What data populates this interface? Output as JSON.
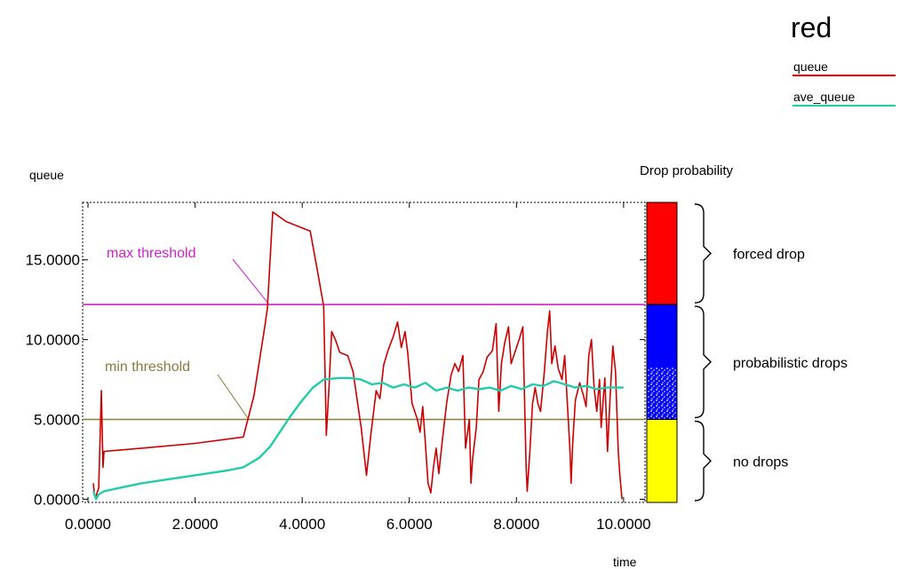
{
  "chart_data": {
    "type": "line",
    "title": "red",
    "xlabel": "time",
    "ylabel": "queue",
    "xlim": [
      -0.1,
      10.4
    ],
    "ylim": [
      -0.2,
      18.6
    ],
    "x_ticks": [
      0,
      2,
      4,
      6,
      8,
      10
    ],
    "x_tick_labels": [
      "0.0000",
      "2.0000",
      "4.0000",
      "6.0000",
      "8.0000",
      "10.0000"
    ],
    "y_ticks": [
      0,
      5,
      10,
      15
    ],
    "y_tick_labels": [
      "0.0000",
      "5.0000",
      "10.0000",
      "15.0000"
    ],
    "grid": false,
    "legend_position": "top-right",
    "thresholds": [
      {
        "label": "max threshold",
        "value": 12.2,
        "color": "#cc22cc"
      },
      {
        "label": "min threshold",
        "value": 5.0,
        "color": "#8a7a3c"
      }
    ],
    "series": [
      {
        "name": "queue",
        "color": "#cc0000",
        "points": [
          [
            0.1,
            1.0
          ],
          [
            0.12,
            0.3
          ],
          [
            0.15,
            0.2
          ],
          [
            0.2,
            0.7
          ],
          [
            0.25,
            6.8
          ],
          [
            0.28,
            2.0
          ],
          [
            0.3,
            3.0
          ],
          [
            1.0,
            3.2
          ],
          [
            2.0,
            3.5
          ],
          [
            2.9,
            3.9
          ],
          [
            3.1,
            6.5
          ],
          [
            3.3,
            10.8
          ],
          [
            3.35,
            12.0
          ],
          [
            3.45,
            18.0
          ],
          [
            3.7,
            17.4
          ],
          [
            4.15,
            16.8
          ],
          [
            4.3,
            14.0
          ],
          [
            4.4,
            12.1
          ],
          [
            4.45,
            4.0
          ],
          [
            4.5,
            7.0
          ],
          [
            4.55,
            10.5
          ],
          [
            4.62,
            10.0
          ],
          [
            4.7,
            9.2
          ],
          [
            4.85,
            9.0
          ],
          [
            4.95,
            8.0
          ],
          [
            5.1,
            4.5
          ],
          [
            5.2,
            1.5
          ],
          [
            5.28,
            4.0
          ],
          [
            5.38,
            6.8
          ],
          [
            5.45,
            6.3
          ],
          [
            5.52,
            8.4
          ],
          [
            5.6,
            9.3
          ],
          [
            5.7,
            10.2
          ],
          [
            5.78,
            11.1
          ],
          [
            5.85,
            9.5
          ],
          [
            5.92,
            10.5
          ],
          [
            5.97,
            9.2
          ],
          [
            6.05,
            6.0
          ],
          [
            6.15,
            5.0
          ],
          [
            6.2,
            4.2
          ],
          [
            6.25,
            5.8
          ],
          [
            6.3,
            3.5
          ],
          [
            6.35,
            1.0
          ],
          [
            6.4,
            0.4
          ],
          [
            6.45,
            2.0
          ],
          [
            6.5,
            3.2
          ],
          [
            6.55,
            1.6
          ],
          [
            6.62,
            3.8
          ],
          [
            6.7,
            6.1
          ],
          [
            6.78,
            7.8
          ],
          [
            6.85,
            8.5
          ],
          [
            6.92,
            8.0
          ],
          [
            7.0,
            9.0
          ],
          [
            7.05,
            3.2
          ],
          [
            7.12,
            5.0
          ],
          [
            7.15,
            1.0
          ],
          [
            7.18,
            2.5
          ],
          [
            7.25,
            4.5
          ],
          [
            7.3,
            7.5
          ],
          [
            7.38,
            8.0
          ],
          [
            7.45,
            8.9
          ],
          [
            7.55,
            9.3
          ],
          [
            7.62,
            11.0
          ],
          [
            7.67,
            5.5
          ],
          [
            7.72,
            8.5
          ],
          [
            7.78,
            9.8
          ],
          [
            7.85,
            10.8
          ],
          [
            7.9,
            8.5
          ],
          [
            7.95,
            9.0
          ],
          [
            8.05,
            10.0
          ],
          [
            8.12,
            10.8
          ],
          [
            8.18,
            2.0
          ],
          [
            8.2,
            0.5
          ],
          [
            8.25,
            3.0
          ],
          [
            8.3,
            6.0
          ],
          [
            8.35,
            7.0
          ],
          [
            8.4,
            6.0
          ],
          [
            8.45,
            5.5
          ],
          [
            8.52,
            8.0
          ],
          [
            8.58,
            10.6
          ],
          [
            8.62,
            11.8
          ],
          [
            8.66,
            8.5
          ],
          [
            8.72,
            9.6
          ],
          [
            8.78,
            8.2
          ],
          [
            8.85,
            7.5
          ],
          [
            8.9,
            9.0
          ],
          [
            8.95,
            6.0
          ],
          [
            9.0,
            3.0
          ],
          [
            9.02,
            1.0
          ],
          [
            9.05,
            3.5
          ],
          [
            9.1,
            6.2
          ],
          [
            9.18,
            7.3
          ],
          [
            9.25,
            6.5
          ],
          [
            9.3,
            5.8
          ],
          [
            9.35,
            9.0
          ],
          [
            9.4,
            10.0
          ],
          [
            9.45,
            7.0
          ],
          [
            9.5,
            5.5
          ],
          [
            9.55,
            7.5
          ],
          [
            9.58,
            4.5
          ],
          [
            9.65,
            7.6
          ],
          [
            9.7,
            3.0
          ],
          [
            9.75,
            6.5
          ],
          [
            9.8,
            9.6
          ],
          [
            9.85,
            8.0
          ],
          [
            9.9,
            3.0
          ],
          [
            9.93,
            1.5
          ],
          [
            9.97,
            0.0
          ]
        ]
      },
      {
        "name": "ave_queue",
        "color": "#22ccaa",
        "points": [
          [
            0.1,
            0.5
          ],
          [
            0.15,
            0.0
          ],
          [
            0.2,
            0.3
          ],
          [
            0.3,
            0.5
          ],
          [
            1.0,
            1.0
          ],
          [
            2.0,
            1.5
          ],
          [
            2.6,
            1.8
          ],
          [
            2.9,
            2.0
          ],
          [
            3.2,
            2.6
          ],
          [
            3.4,
            3.3
          ],
          [
            3.6,
            4.3
          ],
          [
            3.8,
            5.3
          ],
          [
            4.0,
            6.2
          ],
          [
            4.2,
            7.0
          ],
          [
            4.4,
            7.5
          ],
          [
            4.7,
            7.6
          ],
          [
            4.9,
            7.6
          ],
          [
            5.1,
            7.5
          ],
          [
            5.3,
            7.2
          ],
          [
            5.5,
            7.3
          ],
          [
            5.7,
            7.0
          ],
          [
            5.9,
            7.2
          ],
          [
            6.1,
            7.0
          ],
          [
            6.3,
            7.3
          ],
          [
            6.5,
            6.8
          ],
          [
            6.7,
            7.0
          ],
          [
            6.9,
            6.8
          ],
          [
            7.1,
            7.0
          ],
          [
            7.3,
            6.9
          ],
          [
            7.5,
            7.0
          ],
          [
            7.7,
            6.8
          ],
          [
            7.9,
            7.1
          ],
          [
            8.1,
            6.9
          ],
          [
            8.3,
            7.2
          ],
          [
            8.5,
            7.1
          ],
          [
            8.7,
            7.4
          ],
          [
            8.9,
            7.2
          ],
          [
            9.1,
            7.0
          ],
          [
            9.3,
            7.1
          ],
          [
            9.5,
            6.9
          ],
          [
            9.7,
            7.0
          ],
          [
            9.9,
            7.0
          ],
          [
            10.0,
            7.0
          ]
        ]
      }
    ],
    "drop_probability": {
      "title": "Drop probability",
      "bands": [
        {
          "label": "forced drop",
          "from": 12.2,
          "to": 18.6,
          "color": "#ff0000"
        },
        {
          "label": "probabilistic drops",
          "from": 5.0,
          "to": 12.2,
          "color": "#0000ff"
        },
        {
          "label": "no drops",
          "from": -0.2,
          "to": 5.0,
          "color": "#ffff00"
        }
      ]
    }
  }
}
